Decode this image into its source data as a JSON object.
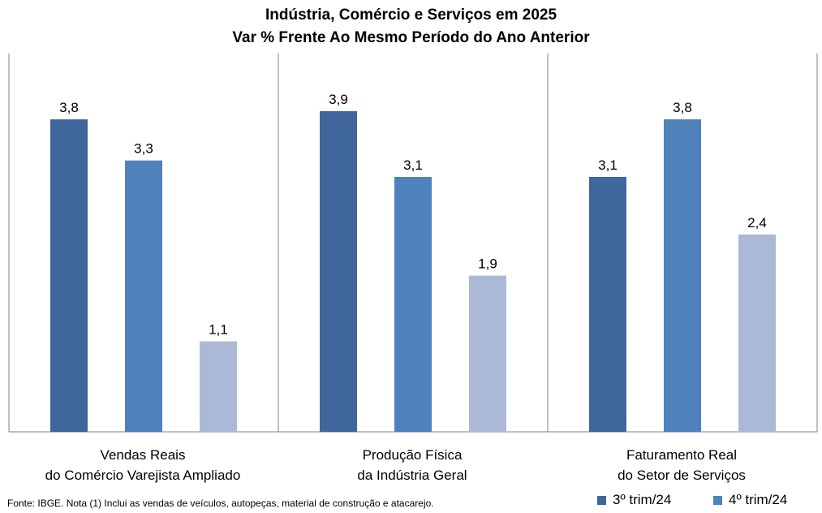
{
  "chart_data": {
    "type": "bar",
    "title": "Indústria, Comércio e Serviços em 2025",
    "subtitle": "Var % Frente Ao Mesmo Período do Ano Anterior",
    "categories": [
      [
        "Vendas Reais",
        "do Comércio Varejista Ampliado"
      ],
      [
        "Produção Física",
        "da Indústria Geral"
      ],
      [
        "Faturamento Real",
        "do Setor de Serviços"
      ]
    ],
    "series": [
      {
        "name": "3º trim/24",
        "color": "#3f679b",
        "values": [
          3.8,
          3.9,
          3.1
        ],
        "labels": [
          "3,8",
          "3,9",
          "3,1"
        ]
      },
      {
        "name": "4º trim/24",
        "color": "#4f81bd",
        "values": [
          3.3,
          3.1,
          3.8
        ],
        "labels": [
          "3,3",
          "3,1",
          "3,8"
        ]
      },
      {
        "name": "",
        "color": "#abb9d6",
        "values": [
          1.1,
          1.9,
          2.4
        ],
        "labels": [
          "1,1",
          "1,9",
          "2,4"
        ]
      }
    ],
    "ylim": [
      0,
      4.6
    ],
    "grid": false,
    "legend_position": "bottom-right",
    "footnote": "Fonte: IBGE. Nota (1) Inclui as vendas de veículos, autopeças, material de construção e atacarejo."
  }
}
